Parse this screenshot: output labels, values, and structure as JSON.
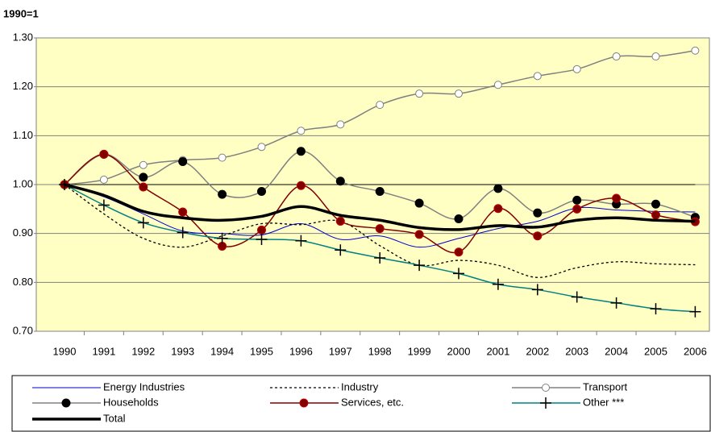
{
  "chart_data": {
    "type": "line",
    "title": "1990=1",
    "categories": [
      "1990",
      "1991",
      "1992",
      "1993",
      "1994",
      "1995",
      "1996",
      "1997",
      "1998",
      "1999",
      "2000",
      "2001",
      "2002",
      "2003",
      "2004",
      "2005",
      "2006"
    ],
    "ylim": [
      0.7,
      1.3
    ],
    "yticks": [
      {
        "value": 0.7,
        "label": "0.70"
      },
      {
        "value": 0.8,
        "label": "0.80"
      },
      {
        "value": 0.9,
        "label": "0.90"
      },
      {
        "value": 1.0,
        "label": "1.00"
      },
      {
        "value": 1.1,
        "label": "1.10"
      },
      {
        "value": 1.2,
        "label": "1.20"
      },
      {
        "value": 1.3,
        "label": "1.30"
      }
    ],
    "grid": true,
    "reference_line": 1,
    "smooth": true,
    "legend": "bottom",
    "background": "#ffffc4",
    "series": [
      {
        "name": "Energy Industries",
        "color": "#0000cc",
        "width": 1,
        "dash": "none",
        "marker": "none",
        "values": [
          1.0,
          0.975,
          0.94,
          0.905,
          0.9,
          0.897,
          0.92,
          0.888,
          0.895,
          0.872,
          0.89,
          0.91,
          0.925,
          0.952,
          0.948,
          0.945,
          0.944
        ]
      },
      {
        "name": "Industry",
        "color": "#000000",
        "width": 1.3,
        "dash": "3,3",
        "marker": "none",
        "values": [
          1.0,
          0.94,
          0.89,
          0.872,
          0.895,
          0.92,
          0.918,
          0.925,
          0.875,
          0.835,
          0.845,
          0.835,
          0.81,
          0.83,
          0.842,
          0.838,
          0.836
        ]
      },
      {
        "name": "Transport",
        "color": "#808080",
        "width": 1.5,
        "dash": "none",
        "marker": "open-circle",
        "values": [
          1.0,
          1.01,
          1.04,
          1.05,
          1.055,
          1.077,
          1.11,
          1.123,
          1.163,
          1.186,
          1.186,
          1.204,
          1.222,
          1.236,
          1.262,
          1.262,
          1.274
        ]
      },
      {
        "name": "Households",
        "color": "#808080",
        "width": 1.5,
        "dash": "none",
        "marker": "filled-circle",
        "marker_color": "#000000",
        "values": [
          1.0,
          1.062,
          1.015,
          1.047,
          0.98,
          0.986,
          1.068,
          1.007,
          0.986,
          0.962,
          0.93,
          0.992,
          0.942,
          0.968,
          0.96,
          0.96,
          0.933
        ]
      },
      {
        "name": "Services, etc.",
        "color": "#800000",
        "width": 1.5,
        "dash": "none",
        "marker": "filled-circle",
        "marker_color": "#800000",
        "values": [
          1.0,
          1.062,
          0.995,
          0.944,
          0.874,
          0.907,
          0.998,
          0.925,
          0.91,
          0.898,
          0.862,
          0.951,
          0.895,
          0.95,
          0.972,
          0.938,
          0.924
        ]
      },
      {
        "name": "Other ***",
        "color": "#008080",
        "width": 1.5,
        "dash": "none",
        "marker": "plus",
        "marker_color": "#000000",
        "values": [
          1.0,
          0.958,
          0.922,
          0.902,
          0.89,
          0.888,
          0.885,
          0.866,
          0.85,
          0.835,
          0.818,
          0.796,
          0.785,
          0.77,
          0.758,
          0.746,
          0.74
        ]
      },
      {
        "name": "Total",
        "color": "#000000",
        "width": 3.5,
        "dash": "none",
        "marker": "none",
        "values": [
          1.0,
          0.978,
          0.945,
          0.932,
          0.927,
          0.935,
          0.955,
          0.937,
          0.927,
          0.912,
          0.908,
          0.916,
          0.913,
          0.927,
          0.932,
          0.927,
          0.925
        ]
      }
    ]
  }
}
